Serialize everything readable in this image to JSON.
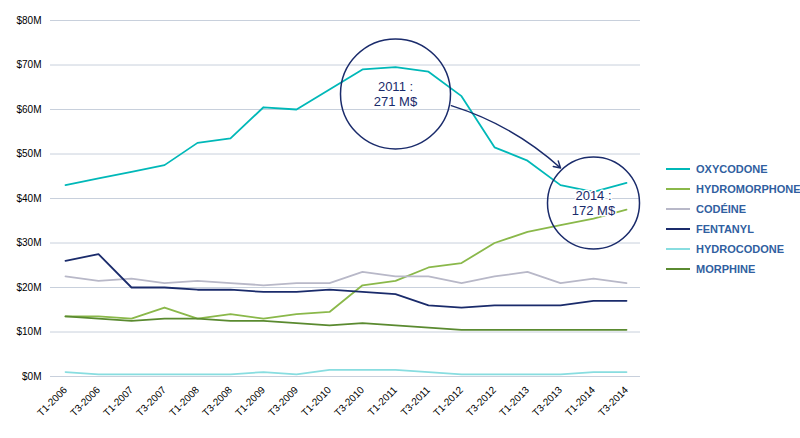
{
  "chart_data": {
    "type": "line",
    "categories": [
      "T1-2006",
      "T3-2006",
      "T1-2007",
      "T3-2007",
      "T1-2008",
      "T3-2008",
      "T1-2009",
      "T3-2009",
      "T1-2010",
      "T3-2010",
      "T1-2011",
      "T3-2011",
      "T1-2012",
      "T3-2012",
      "T1-2013",
      "T3-2013",
      "T1-2014",
      "T3-2014"
    ],
    "series": [
      {
        "name": "OXYCODONE",
        "color": "#00b8b8",
        "values": [
          43000000,
          44500000,
          46000000,
          47500000,
          52500000,
          53500000,
          60500000,
          60000000,
          64500000,
          69000000,
          69500000,
          68500000,
          63000000,
          51500000,
          48500000,
          43000000,
          41500000,
          43500000
        ]
      },
      {
        "name": "HYDROMORPHONE",
        "color": "#8ab84a",
        "values": [
          13500000,
          13500000,
          13000000,
          15500000,
          13000000,
          14000000,
          13000000,
          14000000,
          14500000,
          20500000,
          21500000,
          24500000,
          25500000,
          30000000,
          32500000,
          34000000,
          35500000,
          37500000
        ]
      },
      {
        "name": "CODÉINE",
        "color": "#b8b8c8",
        "values": [
          22500000,
          21500000,
          22000000,
          21000000,
          21500000,
          21000000,
          20500000,
          21000000,
          21000000,
          23500000,
          22500000,
          22500000,
          21000000,
          22500000,
          23500000,
          21000000,
          22000000,
          21000000
        ]
      },
      {
        "name": "FENTANYL",
        "color": "#1a2b6b",
        "values": [
          26000000,
          27500000,
          20000000,
          20000000,
          19500000,
          19500000,
          19000000,
          19000000,
          19500000,
          19000000,
          18500000,
          16000000,
          15500000,
          16000000,
          16000000,
          16000000,
          17000000,
          17000000
        ]
      },
      {
        "name": "HYDROCODONE",
        "color": "#88dde0",
        "values": [
          1000000,
          500000,
          500000,
          500000,
          500000,
          500000,
          1000000,
          500000,
          1500000,
          1500000,
          1500000,
          1000000,
          500000,
          500000,
          500000,
          500000,
          1000000,
          1000000
        ]
      },
      {
        "name": "MORPHINE",
        "color": "#5a8a30",
        "values": [
          13500000,
          13000000,
          12500000,
          13000000,
          13000000,
          12500000,
          12500000,
          12000000,
          11500000,
          12000000,
          11500000,
          11000000,
          10500000,
          10500000,
          10500000,
          10500000,
          10500000,
          10500000
        ]
      }
    ],
    "ylim": [
      0,
      80000000
    ],
    "yticks": [
      {
        "value": 0,
        "label": "$0M"
      },
      {
        "value": 10000000,
        "label": "$10M"
      },
      {
        "value": 20000000,
        "label": "$20M"
      },
      {
        "value": 30000000,
        "label": "$30M"
      },
      {
        "value": 40000000,
        "label": "$40M"
      },
      {
        "value": 50000000,
        "label": "$50M"
      },
      {
        "value": 60000000,
        "label": "$60M"
      },
      {
        "value": 70000000,
        "label": "$70M"
      },
      {
        "value": 80000000,
        "label": "$80M"
      }
    ],
    "grid": true,
    "legend": "right",
    "annotations": [
      {
        "text": "2011 :\n271 M$",
        "x": "T1-2011",
        "y": 63500000,
        "color": "#1a2b6b"
      },
      {
        "text": "2014 :\n172 M$",
        "x": "T1-2014",
        "y": 39000000,
        "color": "#1a2b6b"
      }
    ]
  }
}
